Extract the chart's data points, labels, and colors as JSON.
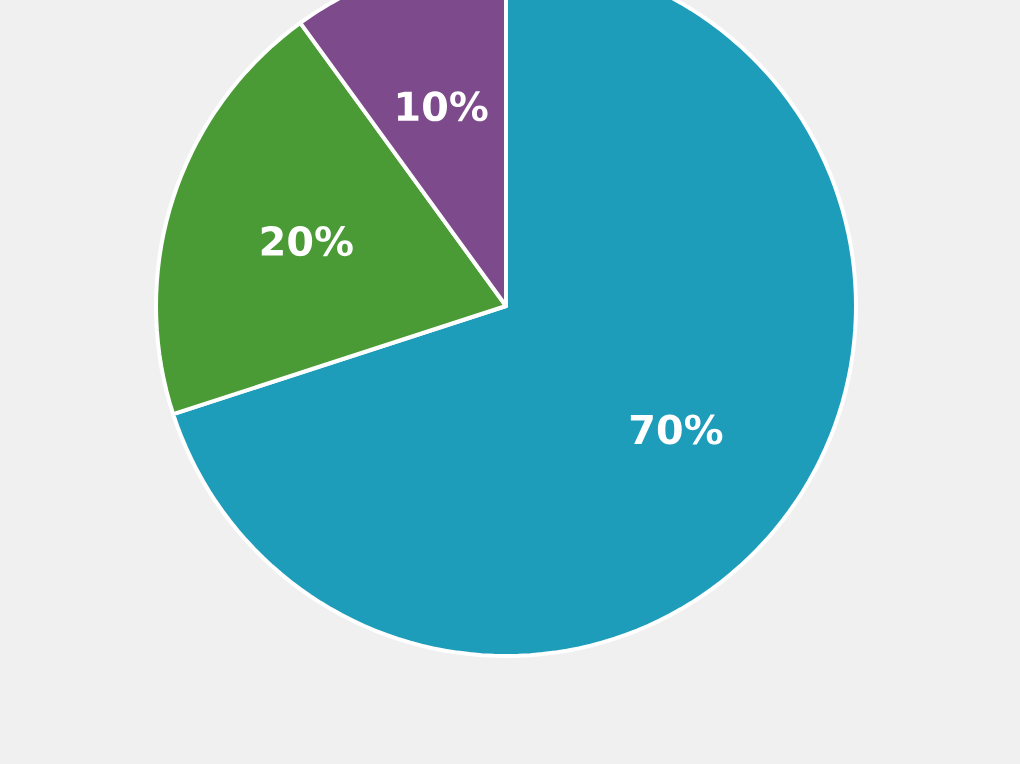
{
  "chart_data": {
    "type": "pie",
    "categories": [
      null,
      null,
      null
    ],
    "values": [
      70,
      20,
      10
    ],
    "colors": [
      "#1e9dba",
      "#4a9a35",
      "#7d4a8c"
    ],
    "value_labels": [
      "70%",
      "20%",
      "10%"
    ]
  }
}
